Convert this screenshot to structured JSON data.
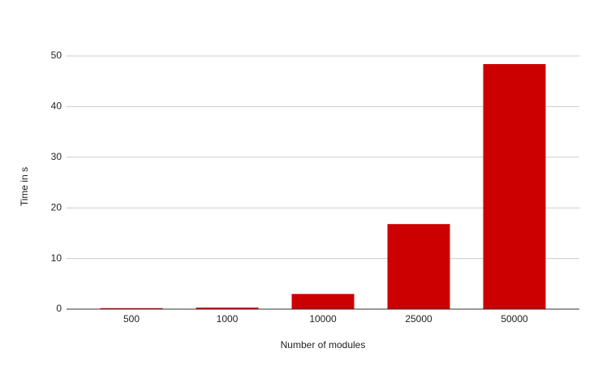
{
  "chart_data": {
    "type": "bar",
    "x_label": "Number of modules",
    "y_label": "Time in s",
    "categories": [
      "500",
      "1000",
      "10000",
      "25000",
      "50000"
    ],
    "values": [
      0.2,
      0.3,
      3.0,
      16.8,
      48.4
    ],
    "color": "#cc0000",
    "ylim": [
      0,
      50
    ],
    "yticks": [
      0,
      10,
      20,
      30,
      40,
      50
    ],
    "grid": true
  }
}
